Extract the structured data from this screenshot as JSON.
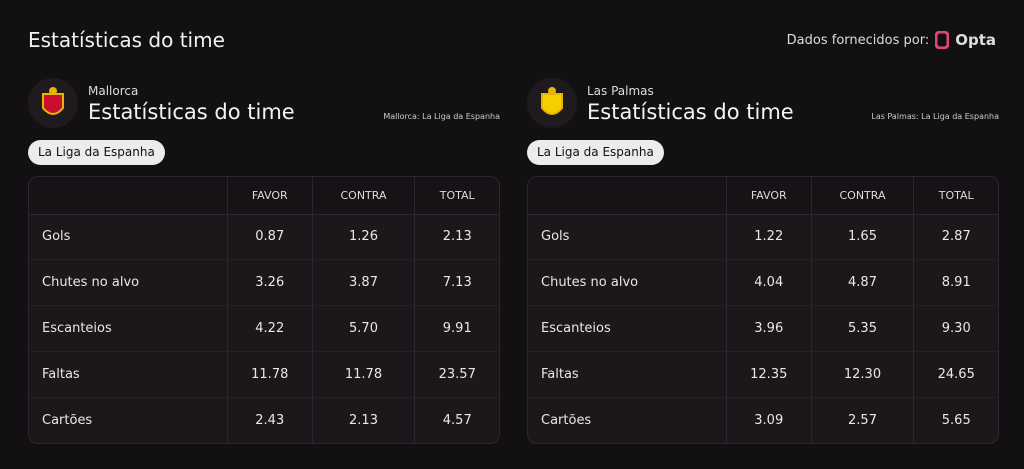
{
  "header": {
    "title": "Estatísticas do time",
    "source": "Dados fornecidos por:",
    "brand": "Opta"
  },
  "teams": [
    {
      "name": "Mallorca",
      "title": "Estatísticas do time",
      "note": "Mallorca: La Liga da Espanha",
      "league": "La Liga da Espanha",
      "table": {
        "columns": [
          "FAVOR",
          "CONTRA",
          "TOTAL"
        ],
        "rows": [
          [
            "Gols",
            "0.87",
            "1.26",
            "2.13"
          ],
          [
            "Chutes no alvo",
            "3.26",
            "3.87",
            "7.13"
          ],
          [
            "Escanteios",
            "4.22",
            "5.70",
            "9.91"
          ],
          [
            "Faltas",
            "11.78",
            "11.78",
            "23.57"
          ],
          [
            "Cartões",
            "2.43",
            "2.13",
            "4.57"
          ]
        ]
      }
    },
    {
      "name": "Las Palmas",
      "title": "Estatísticas do time",
      "note": "Las Palmas: La Liga da Espanha",
      "league": "La Liga da Espanha",
      "table": {
        "columns": [
          "FAVOR",
          "CONTRA",
          "TOTAL"
        ],
        "rows": [
          [
            "Gols",
            "1.22",
            "1.65",
            "2.87"
          ],
          [
            "Chutes no alvo",
            "4.04",
            "4.87",
            "8.91"
          ],
          [
            "Escanteios",
            "3.96",
            "5.35",
            "9.30"
          ],
          [
            "Faltas",
            "12.35",
            "12.30",
            "24.65"
          ],
          [
            "Cartões",
            "3.09",
            "2.57",
            "5.65"
          ]
        ]
      }
    }
  ]
}
